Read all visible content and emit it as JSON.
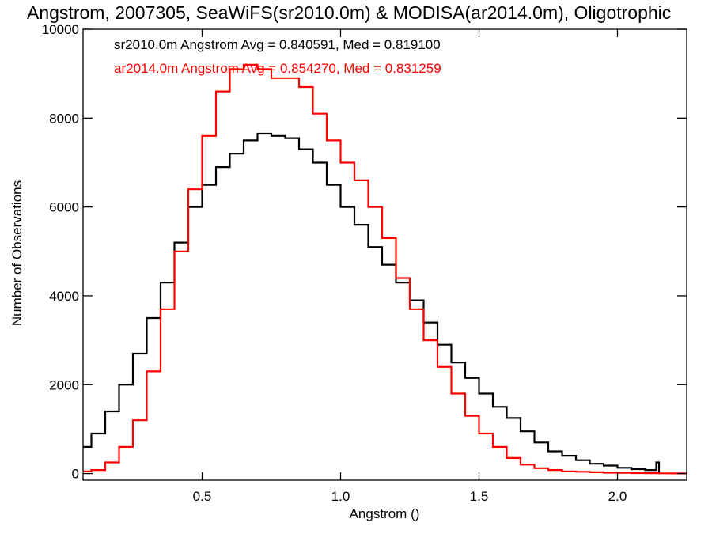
{
  "chart_data": {
    "type": "line",
    "title": "Angstrom, 2007305, SeaWiFS(sr2010.0m) & MODISA(ar2014.0m), Oligotrophic",
    "xlabel": "Angstrom ()",
    "ylabel": "Number of Observations",
    "xlim": [
      0.07,
      2.25
    ],
    "ylim": [
      -150,
      10000
    ],
    "x_ticks": [
      0.5,
      1.0,
      1.5,
      2.0
    ],
    "x_tick_labels": [
      "0.5",
      "1.0",
      "1.5",
      "2.0"
    ],
    "y_ticks": [
      0,
      2000,
      4000,
      6000,
      8000,
      10000
    ],
    "y_tick_labels": [
      "0",
      "2000",
      "4000",
      "6000",
      "8000",
      "10000"
    ],
    "grid": false,
    "step": true,
    "annotations": [
      {
        "text": "sr2010.0m Angstrom Avg = 0.840591, Med = 0.819100",
        "color": "#000000"
      },
      {
        "text": "ar2014.0m Angstrom Avg = 0.854270, Med = 0.831259",
        "color": "#ff0000"
      }
    ],
    "series": [
      {
        "color": "#000000",
        "x": [
          0.07,
          0.1,
          0.15,
          0.2,
          0.25,
          0.3,
          0.35,
          0.4,
          0.45,
          0.5,
          0.55,
          0.6,
          0.65,
          0.7,
          0.75,
          0.8,
          0.85,
          0.9,
          0.95,
          1.0,
          1.05,
          1.1,
          1.15,
          1.2,
          1.25,
          1.3,
          1.35,
          1.4,
          1.45,
          1.5,
          1.55,
          1.6,
          1.65,
          1.7,
          1.75,
          1.8,
          1.85,
          1.9,
          1.95,
          2.0,
          2.05,
          2.1,
          2.14,
          2.15
        ],
        "y": [
          600,
          900,
          1400,
          2000,
          2700,
          3500,
          4300,
          5200,
          6000,
          6500,
          6900,
          7200,
          7500,
          7650,
          7600,
          7550,
          7300,
          7000,
          6500,
          6000,
          5600,
          5100,
          4700,
          4300,
          3900,
          3400,
          2900,
          2500,
          2150,
          1800,
          1500,
          1250,
          950,
          700,
          500,
          400,
          300,
          220,
          180,
          130,
          100,
          80,
          250,
          0
        ]
      },
      {
        "color": "#ff0000",
        "x": [
          0.07,
          0.1,
          0.15,
          0.2,
          0.25,
          0.3,
          0.35,
          0.4,
          0.45,
          0.5,
          0.55,
          0.6,
          0.65,
          0.7,
          0.75,
          0.8,
          0.85,
          0.9,
          0.95,
          1.0,
          1.05,
          1.1,
          1.15,
          1.2,
          1.25,
          1.3,
          1.35,
          1.4,
          1.45,
          1.5,
          1.55,
          1.6,
          1.65,
          1.7,
          1.75,
          1.8,
          1.85,
          1.9,
          1.95,
          2.0,
          2.05,
          2.1,
          2.15,
          2.2,
          2.25
        ],
        "y": [
          50,
          80,
          250,
          600,
          1200,
          2300,
          3700,
          5000,
          6400,
          7600,
          8600,
          9100,
          9200,
          9100,
          8900,
          8900,
          8700,
          8100,
          7500,
          7000,
          6600,
          6000,
          5300,
          4400,
          3700,
          3000,
          2400,
          1800,
          1300,
          900,
          600,
          350,
          200,
          120,
          80,
          50,
          40,
          30,
          20,
          15,
          10,
          8,
          5,
          3,
          2
        ]
      }
    ]
  }
}
